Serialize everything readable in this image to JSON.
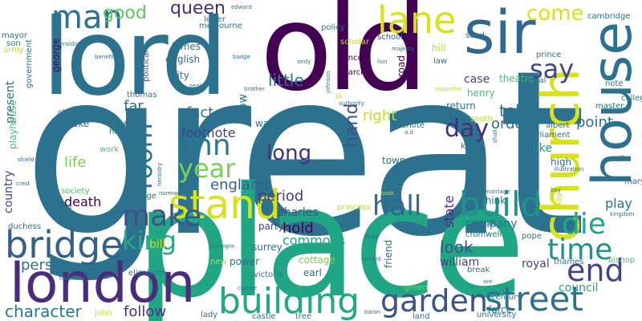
{
  "words": [
    {
      "text": "great",
      "color": "#2c728e"
    },
    {
      "text": "place",
      "color": "#21a685"
    },
    {
      "text": "lord",
      "color": "#2c728e"
    },
    {
      "text": "old",
      "color": "#440154"
    },
    {
      "text": "sir",
      "color": "#31688e"
    },
    {
      "text": "church",
      "color": "#d8e219"
    },
    {
      "text": "house",
      "color": "#2c728e"
    },
    {
      "text": "london",
      "color": "#472d7b"
    },
    {
      "text": "bridge",
      "color": "#355f8d"
    },
    {
      "text": "stand",
      "color": "#d8e219"
    },
    {
      "text": "street",
      "color": "#2c728e"
    },
    {
      "text": "building",
      "color": "#22a884"
    },
    {
      "text": "garden",
      "color": "#3b528b"
    },
    {
      "text": "lane",
      "color": "#d8e219"
    },
    {
      "text": "man",
      "color": "#2c728e"
    },
    {
      "text": "build",
      "color": "#21918c"
    },
    {
      "text": "time",
      "color": "#21918c"
    },
    {
      "text": "end",
      "color": "#414487"
    },
    {
      "text": "die",
      "color": "#22a884"
    },
    {
      "text": "hall",
      "color": "#31688e"
    },
    {
      "text": "make",
      "color": "#3b528b"
    },
    {
      "text": "king",
      "color": "#22a884"
    },
    {
      "text": "inn",
      "color": "#2a788e"
    },
    {
      "text": "year",
      "color": "#7ad151"
    },
    {
      "text": "day",
      "color": "#472d7b"
    },
    {
      "text": "say",
      "color": "#414487"
    },
    {
      "text": "come",
      "color": "#d8e219"
    },
    {
      "text": "good",
      "color": "#5ec962"
    },
    {
      "text": "queen",
      "color": "#472d7b"
    },
    {
      "text": "little",
      "color": "#2c728e"
    },
    {
      "text": "room",
      "color": "#2c728e"
    },
    {
      "text": "long",
      "color": "#46327e"
    },
    {
      "text": "person",
      "color": "#2c728e"
    },
    {
      "text": "character",
      "color": "#2a788e"
    },
    {
      "text": "follow",
      "color": "#46327e"
    },
    {
      "text": "hold",
      "color": "#440154"
    },
    {
      "text": "look",
      "color": "#3b528b"
    },
    {
      "text": "party",
      "color": "#3e4989"
    },
    {
      "text": "period",
      "color": "#433e85"
    },
    {
      "text": "england",
      "color": "#355f8d"
    },
    {
      "text": "footnote",
      "color": "#414487"
    },
    {
      "text": "fact",
      "color": "#2c728e"
    },
    {
      "text": "far",
      "color": "#2c728e"
    },
    {
      "text": "oxford",
      "color": "#2c728e"
    },
    {
      "text": "history",
      "color": "#2c728e"
    },
    {
      "text": "death",
      "color": "#440154"
    },
    {
      "text": "life",
      "color": "#7ad151"
    },
    {
      "text": "duke",
      "color": "#2c728e"
    },
    {
      "text": "present",
      "color": "#2c728e"
    },
    {
      "text": "country",
      "color": "#3e4989"
    },
    {
      "text": "playhouse",
      "color": "#4ac16d"
    },
    {
      "text": "william",
      "color": "#433e85"
    },
    {
      "text": "royal",
      "color": "#414487"
    },
    {
      "text": "council",
      "color": "#21a685"
    },
    {
      "text": "company",
      "color": "#2c728e"
    },
    {
      "text": "play",
      "color": "#2c728e"
    },
    {
      "text": "point",
      "color": "#2c728e"
    },
    {
      "text": "tell",
      "color": "#2c728e"
    },
    {
      "text": "order",
      "color": "#2c728e"
    },
    {
      "text": "like",
      "color": "#21918c"
    },
    {
      "text": "right",
      "color": "#c2df23"
    },
    {
      "text": "hand",
      "color": "#3b528b"
    },
    {
      "text": "state",
      "color": "#46327e"
    },
    {
      "text": "town",
      "color": "#2c728e"
    },
    {
      "text": "think",
      "color": "#2c728e"
    },
    {
      "text": "high",
      "color": "#2c728e"
    },
    {
      "text": "return",
      "color": "#2c728e"
    },
    {
      "text": "case",
      "color": "#3e4989"
    },
    {
      "text": "theatre",
      "color": "#4ac16d"
    },
    {
      "text": "henry",
      "color": "#4ac16d"
    },
    {
      "text": "charles",
      "color": "#3b528b"
    },
    {
      "text": "commons",
      "color": "#22a884"
    },
    {
      "text": "water",
      "color": "#2c728e"
    },
    {
      "text": "river",
      "color": "#2c728e"
    },
    {
      "text": "know",
      "color": "#2c728e"
    },
    {
      "text": "james",
      "color": "#2c728e"
    },
    {
      "text": "english",
      "color": "#2c728e"
    },
    {
      "text": "city",
      "color": "#2c728e"
    },
    {
      "text": "letter",
      "color": "#2c728e"
    },
    {
      "text": "government",
      "color": "#2c728e"
    },
    {
      "text": "george",
      "color": "#440154"
    },
    {
      "text": "political",
      "color": "#3b528b"
    },
    {
      "text": "policy",
      "color": "#2c728e"
    },
    {
      "text": "scholar",
      "color": "#bddf26"
    },
    {
      "text": "france",
      "color": "#440154"
    },
    {
      "text": "march",
      "color": "#440154"
    },
    {
      "text": "school",
      "color": "#3b528b"
    },
    {
      "text": "hill",
      "color": "#c2df23"
    },
    {
      "text": "road",
      "color": "#440154"
    },
    {
      "text": "law",
      "color": "#2c728e"
    },
    {
      "text": "send",
      "color": "#2c728e"
    },
    {
      "text": "journal",
      "color": "#2c728e"
    },
    {
      "text": "prince",
      "color": "#2c728e"
    },
    {
      "text": "cambridge",
      "color": "#2c728e"
    },
    {
      "text": "note",
      "color": "#2c728e"
    },
    {
      "text": "master",
      "color": "#2c728e"
    },
    {
      "text": "college",
      "color": "#2c728e"
    },
    {
      "text": "albert",
      "color": "#2c728e"
    },
    {
      "text": "parliament",
      "color": "#2c728e"
    },
    {
      "text": "wall",
      "color": "#2c728e"
    },
    {
      "text": "mary",
      "color": "#2c728e"
    },
    {
      "text": "sidenote",
      "color": "#2c728e"
    },
    {
      "text": "kent",
      "color": "#2c728e"
    },
    {
      "text": "run",
      "color": "#2c728e"
    },
    {
      "text": "south",
      "color": "#bddf26"
    },
    {
      "text": "iii",
      "color": "#c2df23"
    },
    {
      "text": "work",
      "color": "#4ac16d"
    },
    {
      "text": "village",
      "color": "#2c728e"
    },
    {
      "text": "society",
      "color": "#4ac16d"
    },
    {
      "text": "mile",
      "color": "#2c728e"
    },
    {
      "text": "surrey",
      "color": "#2c728e"
    },
    {
      "text": "power",
      "color": "#2c728e"
    },
    {
      "text": "earl",
      "color": "#2c728e"
    },
    {
      "text": "bill",
      "color": "#c2df23"
    },
    {
      "text": "elizabeth",
      "color": "#2c728e"
    },
    {
      "text": "victoria",
      "color": "#2c728e"
    },
    {
      "text": "war",
      "color": "#2c728e"
    },
    {
      "text": "friend",
      "color": "#2c728e"
    },
    {
      "text": "cottage",
      "color": "#7ad151"
    },
    {
      "text": "visit",
      "color": "#2c728e"
    },
    {
      "text": "cromwell",
      "color": "#2c728e"
    },
    {
      "text": "pope",
      "color": "#2c728e"
    },
    {
      "text": "thames",
      "color": "#2c728e"
    },
    {
      "text": "bishop",
      "color": "#4ac16d"
    },
    {
      "text": "break",
      "color": "#2c728e"
    },
    {
      "text": "century",
      "color": "#2c728e"
    },
    {
      "text": "force",
      "color": "#2c728e"
    },
    {
      "text": "university",
      "color": "#2c728e"
    },
    {
      "text": "land",
      "color": "#2c728e"
    },
    {
      "text": "castle",
      "color": "#2c728e"
    },
    {
      "text": "tree",
      "color": "#2c728e"
    },
    {
      "text": "lady",
      "color": "#2c728e"
    },
    {
      "text": "john",
      "color": "#c2df23"
    },
    {
      "text": "green",
      "color": "#7ad151"
    },
    {
      "text": "new",
      "color": "#c2df23"
    },
    {
      "text": "duchess",
      "color": "#2c728e"
    },
    {
      "text": "thomas",
      "color": "#2c728e"
    },
    {
      "text": "child",
      "color": "#2c728e"
    },
    {
      "text": "archbishop",
      "color": "#2c728e"
    },
    {
      "text": "shield",
      "color": "#2c728e"
    },
    {
      "text": "mayor",
      "color": "#2c728e"
    },
    {
      "text": "son",
      "color": "#2c728e"
    },
    {
      "text": "army",
      "color": "#bddf26"
    },
    {
      "text": "heraldic",
      "color": "#2c728e"
    },
    {
      "text": "edward",
      "color": "#2c728e"
    },
    {
      "text": "melbourne",
      "color": "#2c728e"
    },
    {
      "text": "majesty",
      "color": "#2c728e"
    },
    {
      "text": "benefit",
      "color": "#2c728e"
    },
    {
      "text": "badge",
      "color": "#2c728e"
    },
    {
      "text": "seal",
      "color": "#2c728e"
    },
    {
      "text": "brother",
      "color": "#2c728e"
    },
    {
      "text": "andy",
      "color": "#2c728e"
    },
    {
      "text": "lion",
      "color": "#2c728e"
    },
    {
      "text": "johnson",
      "color": "#2c728e"
    },
    {
      "text": "authority",
      "color": "#2c728e"
    },
    {
      "text": "a.d",
      "color": "#2c728e"
    },
    {
      "text": "supporter",
      "color": "#bddf26"
    },
    {
      "text": "shall",
      "color": "#2c728e"
    },
    {
      "text": "book",
      "color": "#c2df23"
    },
    {
      "text": "princess",
      "color": "#c2df23"
    },
    {
      "text": "marriage",
      "color": "#2c728e"
    },
    {
      "text": "way",
      "color": "#c2df23"
    },
    {
      "text": "boy",
      "color": "#2c728e"
    },
    {
      "text": "illustration",
      "color": "#2c728e"
    },
    {
      "text": "kingdom",
      "color": "#2c728e"
    },
    {
      "text": "crest",
      "color": "#2c728e"
    },
    {
      "text": "heraldry",
      "color": "#2c728e"
    },
    {
      "text": "example",
      "color": "#2c728e"
    },
    {
      "text": "norman",
      "color": "#2c728e"
    },
    {
      "text": "richard",
      "color": "#2c728e"
    },
    {
      "text": "charge",
      "color": "#2c728e"
    },
    {
      "text": "are",
      "color": "#2c728e"
    },
    {
      "text": "baron",
      "color": "#2c728e"
    },
    {
      "text": "thousand",
      "color": "#2c728e"
    },
    {
      "text": "marry",
      "color": "#2c728e"
    }
  ]
}
